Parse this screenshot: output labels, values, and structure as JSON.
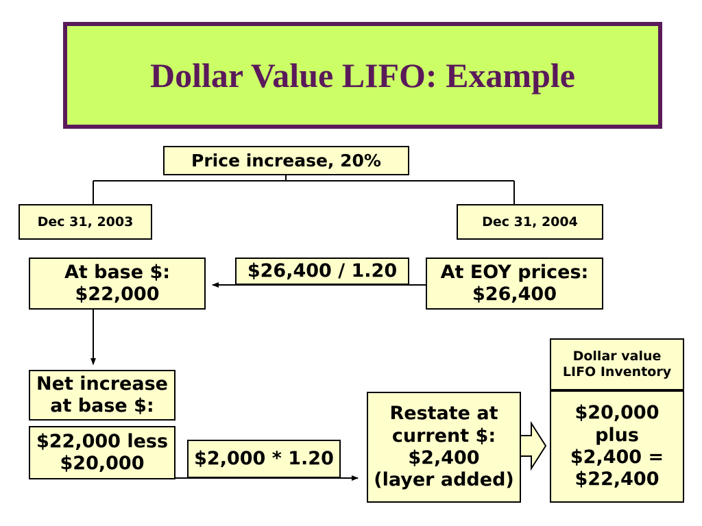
{
  "title": "Dollar Value LIFO: Example",
  "nodes": [
    {
      "lines": [
        "Price increase, 20%"
      ]
    },
    {
      "lines": [
        "Dec 31, 2003"
      ]
    },
    {
      "lines": [
        "Dec 31, 2004"
      ]
    },
    {
      "lines": [
        "At base $:",
        "$22,000"
      ]
    },
    {
      "lines": [
        "$26,400 / 1.20"
      ]
    },
    {
      "lines": [
        "At EOY prices:",
        "$26,400"
      ]
    },
    {
      "lines": [
        "Net increase",
        "at base $:"
      ]
    },
    {
      "lines": [
        "$22,000 less",
        "$20,000"
      ]
    },
    {
      "lines": [
        "$2,000 * 1.20"
      ]
    },
    {
      "lines": [
        "Restate at",
        "current $:",
        "$2,400",
        "(layer added)"
      ]
    },
    {
      "lines": [
        "Dollar value",
        "LIFO Inventory"
      ]
    },
    {
      "lines": [
        "$20,000",
        "plus",
        "$2,400 =",
        "$22,400"
      ]
    }
  ]
}
